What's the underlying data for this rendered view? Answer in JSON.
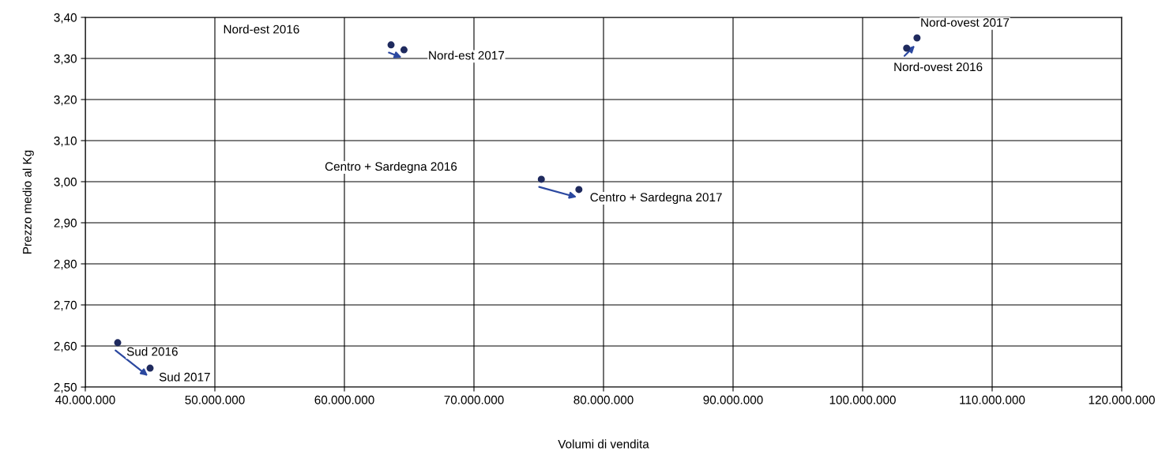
{
  "chart_data": {
    "type": "scatter",
    "xlabel": "Volumi di vendita",
    "ylabel": "Prezzo medio al Kg",
    "series": [
      {
        "color": "#1f2a5e",
        "x": [
          63600000,
          64600000,
          103400000,
          104200000,
          75200000,
          78100000,
          42500000,
          45000000
        ],
        "values": [
          3.333,
          3.321,
          3.325,
          3.35,
          3.006,
          2.981,
          2.608,
          2.546
        ]
      }
    ],
    "annotations": [
      "Nord-est 2016",
      {
        "text": "Nord-est 2017",
        "x": 64600000,
        "y": 3.321
      },
      {
        "text": "Nord-ovest 2016",
        "x": 103400000,
        "y": 3.325
      },
      {
        "text": "Nord-ovest 2017",
        "x": 104200000,
        "y": 3.35
      },
      "Centro + Sardegna 2016",
      {
        "text": "Centro + Sardegna 2017",
        "x": 78100000,
        "y": 2.981
      },
      {
        "text": "Sud 2016",
        "x": 42500000,
        "y": 2.608
      },
      {
        "text": "Sud 2017",
        "x": 45000000,
        "y": 2.546
      }
    ],
    "xlim": [
      40000000,
      120000000
    ],
    "xticks": [
      {
        "value": 40000000,
        "label": "40.000.000"
      },
      {
        "value": 50000000,
        "label": "50.000.000"
      },
      {
        "value": 60000000,
        "label": "60.000.000"
      },
      {
        "value": 70000000,
        "label": "70.000.000"
      },
      {
        "value": 80000000,
        "label": "80.000.000"
      },
      {
        "value": 90000000,
        "label": "90.000.000"
      },
      {
        "value": 100000000,
        "label": "100.000.000"
      },
      {
        "value": 110000000,
        "label": "110.000.000"
      },
      {
        "value": 120000000,
        "label": "120.000.000"
      }
    ],
    "ylim": [
      2.5,
      3.4
    ],
    "yticks": [
      {
        "value": 2.5,
        "label": "2,50"
      },
      {
        "value": 2.6,
        "label": "2,60"
      },
      {
        "value": 2.7,
        "label": "2,70"
      },
      {
        "value": 2.8,
        "label": "2,80"
      },
      {
        "value": 2.9,
        "label": "2,90"
      },
      {
        "value": 3.0,
        "label": "3,00"
      },
      {
        "value": 3.1,
        "label": "3,10"
      },
      {
        "value": 3.2,
        "label": "3,20"
      },
      {
        "value": 3.3,
        "label": "3,30"
      },
      {
        "value": 3.4,
        "label": "3,40"
      }
    ],
    "grid": true,
    "marker": "circle"
  }
}
